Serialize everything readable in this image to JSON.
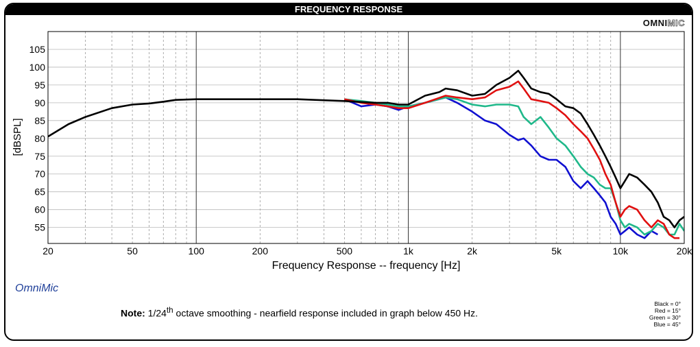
{
  "window": {
    "title": "FREQUENCY RESPONSE",
    "brand_main": "OMNI",
    "brand_outline": "MIC",
    "app_name": "OmniMic"
  },
  "note": {
    "label": "Note:",
    "text_pre": " 1/24",
    "superscript": "th",
    "text_post": " octave smoothing - nearfield response included in graph below 450 Hz."
  },
  "legend": [
    {
      "text": "Black = 0°",
      "color": "#000000"
    },
    {
      "text": "Red = 15°",
      "color": "#e01010"
    },
    {
      "text": "Green = 30°",
      "color": "#1fb88a"
    },
    {
      "text": "Blue = 45°",
      "color": "#1010d0"
    }
  ],
  "chart_data": {
    "type": "line",
    "title": "FREQUENCY RESPONSE",
    "xlabel": "Frequency Response -- frequency [Hz]",
    "ylabel": "[dBSPL]",
    "xscale": "log",
    "xlim": [
      20,
      20000
    ],
    "ylim": [
      50.5,
      110
    ],
    "x_ticks": [
      {
        "value": 20,
        "label": "20"
      },
      {
        "value": 50,
        "label": "50"
      },
      {
        "value": 100,
        "label": "100"
      },
      {
        "value": 200,
        "label": "200"
      },
      {
        "value": 500,
        "label": "500"
      },
      {
        "value": 1000,
        "label": "1k"
      },
      {
        "value": 2000,
        "label": "2k"
      },
      {
        "value": 5000,
        "label": "5k"
      },
      {
        "value": 10000,
        "label": "10k"
      },
      {
        "value": 20000,
        "label": "20k"
      }
    ],
    "y_ticks": [
      55,
      60,
      65,
      70,
      75,
      80,
      85,
      90,
      95,
      100,
      105
    ],
    "grid": true,
    "series": [
      {
        "name": "Black = 0°",
        "color": "#000000",
        "x": [
          20,
          25,
          30,
          40,
          50,
          60,
          70,
          80,
          100,
          150,
          200,
          300,
          400,
          500,
          600,
          700,
          800,
          900,
          1000,
          1200,
          1400,
          1500,
          1700,
          2000,
          2300,
          2600,
          3000,
          3300,
          3500,
          3800,
          4200,
          4600,
          5000,
          5500,
          6000,
          6500,
          7000,
          7500,
          8000,
          8500,
          9000,
          9500,
          10000,
          10500,
          11000,
          12000,
          13000,
          14000,
          15000,
          16000,
          17000,
          18000,
          19000,
          20000
        ],
        "y": [
          80.5,
          84,
          86,
          88.5,
          89.5,
          89.8,
          90.3,
          90.8,
          91,
          91,
          91,
          91,
          90.7,
          90.5,
          90.2,
          90,
          90,
          89.5,
          89.5,
          92,
          93,
          94,
          93.5,
          92,
          92.5,
          95,
          97,
          99,
          97,
          94,
          93,
          92.5,
          91,
          89,
          88.5,
          87,
          84,
          81,
          78,
          75,
          72,
          69,
          66,
          68,
          70,
          69,
          67,
          65,
          62,
          58,
          57,
          55,
          57,
          58
        ]
      },
      {
        "name": "Red = 15°",
        "color": "#e01010",
        "x": [
          500,
          600,
          700,
          800,
          900,
          1000,
          1200,
          1500,
          1700,
          2000,
          2300,
          2600,
          3000,
          3300,
          3500,
          3800,
          4200,
          4600,
          5000,
          5500,
          6000,
          6500,
          7000,
          7500,
          8000,
          8500,
          9000,
          9500,
          10000,
          10500,
          11000,
          12000,
          13000,
          14000,
          15000,
          16000,
          17000,
          18000,
          19000
        ],
        "y": [
          91,
          90,
          89.5,
          89,
          88.5,
          88.5,
          90,
          92,
          91.5,
          91,
          91.5,
          93.5,
          94.5,
          96,
          94,
          91,
          90.5,
          90,
          88.5,
          86.5,
          84,
          82,
          80,
          77,
          74,
          70,
          67,
          62,
          58,
          60,
          61,
          60,
          57,
          55,
          57,
          56,
          53,
          52,
          52
        ]
      },
      {
        "name": "Green = 30°",
        "color": "#1fb88a",
        "x": [
          500,
          600,
          700,
          800,
          900,
          1000,
          1200,
          1500,
          1700,
          2000,
          2300,
          2600,
          3000,
          3300,
          3500,
          3800,
          4200,
          4600,
          5000,
          5500,
          6000,
          6500,
          7000,
          7500,
          8000,
          8500,
          9000,
          9500,
          10000,
          10500,
          11000,
          12000,
          13000,
          14000,
          15000,
          16000,
          17000,
          18000,
          19000,
          20000
        ],
        "y": [
          91,
          90.5,
          90,
          89.5,
          89,
          89,
          90,
          91.5,
          91,
          89.5,
          89,
          89.5,
          89.5,
          89,
          86,
          84,
          86,
          83,
          80,
          78,
          75,
          72,
          70,
          69,
          67,
          66,
          66,
          62,
          57,
          55,
          56,
          55,
          53,
          54,
          56,
          55,
          53,
          53,
          56,
          54
        ]
      },
      {
        "name": "Blue = 45°",
        "color": "#1010d0",
        "x": [
          500,
          600,
          700,
          800,
          900,
          1000,
          1200,
          1500,
          1700,
          2000,
          2300,
          2600,
          3000,
          3300,
          3500,
          3800,
          4200,
          4600,
          5000,
          5500,
          6000,
          6500,
          7000,
          7500,
          8000,
          8500,
          9000,
          9500,
          10000,
          10500,
          11000,
          12000,
          13000,
          14000,
          15000
        ],
        "y": [
          91,
          89,
          89.5,
          89,
          88,
          89,
          90,
          91.5,
          90,
          87.5,
          85,
          84,
          81,
          79.5,
          80,
          78,
          75,
          74,
          74,
          72,
          68,
          66,
          68,
          66,
          64,
          62,
          58,
          56,
          53,
          54,
          55,
          53,
          52,
          54,
          53
        ]
      }
    ]
  }
}
